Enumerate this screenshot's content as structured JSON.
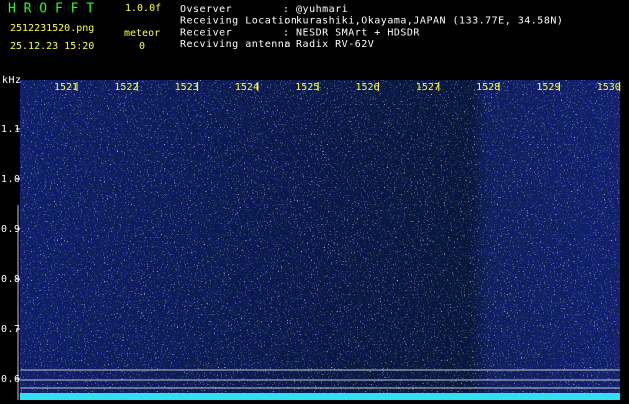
{
  "header": {
    "app": "H R O F F T",
    "version": "1.0.0f",
    "filename": "2512231520.png",
    "mode": "meteor",
    "datetime": "25.12.23 15:20",
    "count": "0"
  },
  "info": [
    {
      "label": "Ovserver",
      "value": ": @yuhmari"
    },
    {
      "label": "Receiving Location",
      "value": ": kurashiki,Okayama,JAPAN (133.77E, 34.58N)"
    },
    {
      "label": "Receiver",
      "value": ": NESDR SMArt + HDSDR"
    },
    {
      "label": "Recviving antenna",
      "value": ": Radix RV-62V"
    }
  ],
  "axis": {
    "unit": "kHz",
    "x_labels": [
      "1521",
      "1522",
      "1523",
      "1524",
      "1525",
      "1526",
      "1527",
      "1528",
      "1529",
      "1530"
    ],
    "y_labels": [
      "1.1",
      "1.0",
      "0.9",
      "0.8",
      "0.7",
      "0.6"
    ]
  }
}
